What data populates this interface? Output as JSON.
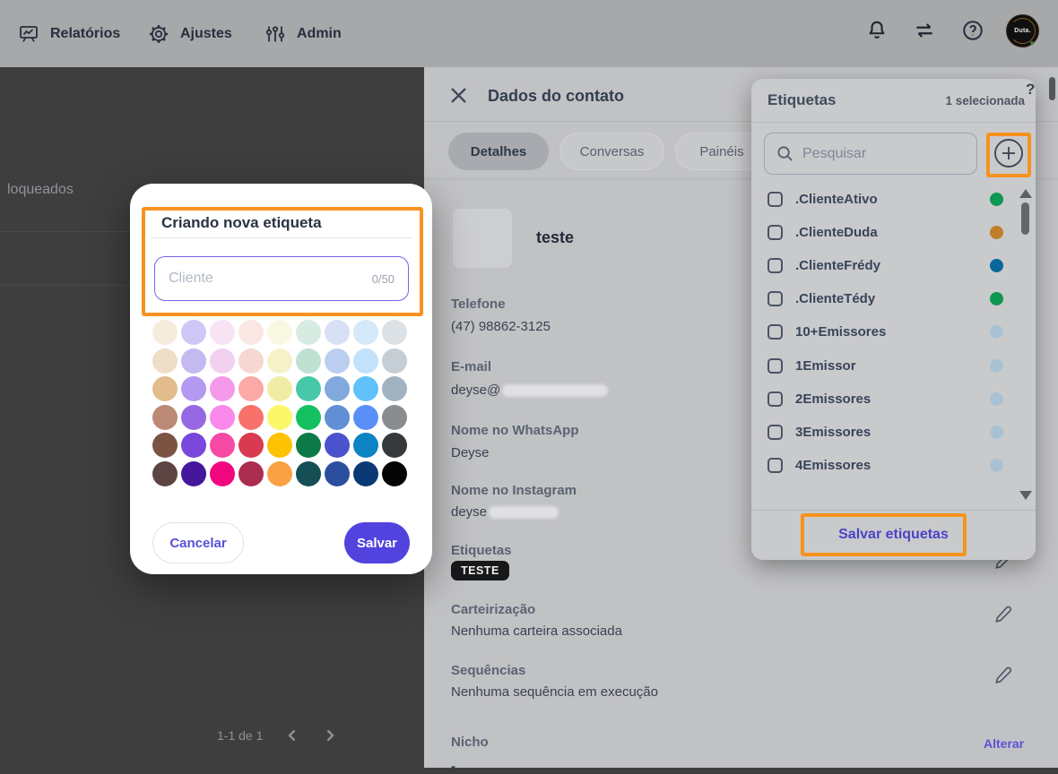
{
  "navbar": {
    "items": [
      {
        "label": "Relatórios",
        "icon": "presentation-chart-icon"
      },
      {
        "label": "Ajustes",
        "icon": "gear-icon"
      },
      {
        "label": "Admin",
        "icon": "sliders-icon"
      }
    ],
    "right_icons": [
      "bell-icon",
      "swap-arrows-icon",
      "help-icon"
    ],
    "avatar_text": "Duta."
  },
  "left_panel": {
    "truncated_text": "loqueados",
    "pagination_range": "1-1 de 1"
  },
  "contact_panel": {
    "title": "Dados do contato",
    "tabs": [
      {
        "label": "Detalhes",
        "active": true
      },
      {
        "label": "Conversas",
        "active": false
      },
      {
        "label": "Painéis",
        "active": false
      }
    ],
    "name": "teste",
    "phone_label": "Telefone",
    "phone_value": "(47) 98862-3125",
    "email_label": "E-mail",
    "email_value": "deyse@",
    "whatsapp_label": "Nome no WhatsApp",
    "whatsapp_value": "Deyse",
    "instagram_label": "Nome no Instagram",
    "instagram_value": "deyse",
    "etiquetas_label": "Etiquetas",
    "etiqueta_badge": "TESTE",
    "carteirizacao_label": "Carteirização",
    "carteirizacao_value": "Nenhuma carteira associada",
    "sequencias_label": "Sequências",
    "sequencias_value": "Nenhuma sequência em execução",
    "nicho_label": "Nicho",
    "nicho_action": "Alterar",
    "nicho_value": "-"
  },
  "etiquetas_panel": {
    "title": "Etiquetas",
    "selected_count": "1 selecionada",
    "search_placeholder": "Pesquisar",
    "save_label": "Salvar etiquetas",
    "items": [
      {
        "label": ".ClienteAtivo",
        "color": "#0d9752"
      },
      {
        "label": ".ClienteDuda",
        "color": "#c07f28"
      },
      {
        "label": ".ClienteFrédy",
        "color": "#09679c"
      },
      {
        "label": ".ClienteTédy",
        "color": "#0d9752"
      },
      {
        "label": "10+Emissores",
        "color": "#a9c2d3"
      },
      {
        "label": "1Emissor",
        "color": "#a9c2d3"
      },
      {
        "label": "2Emissores",
        "color": "#a9c2d3"
      },
      {
        "label": "3Emissores",
        "color": "#a9c2d3"
      },
      {
        "label": "4Emissores",
        "color": "#a9c2d3"
      }
    ]
  },
  "modal": {
    "title": "Criando nova etiqueta",
    "input_placeholder": "Cliente",
    "char_counter": "0/50",
    "cancel_label": "Cancelar",
    "save_label": "Salvar",
    "palette": [
      [
        "#f5ecdc",
        "#cfc8f6",
        "#f8e3f5",
        "#fae6e2",
        "#f9f8e3",
        "#d7ebe2",
        "#d7e0f5",
        "#d5e9fa",
        "#dce1e6"
      ],
      [
        "#eedec7",
        "#c5b9f2",
        "#f1d1ee",
        "#f7d7d1",
        "#f5f2ca",
        "#bfe1d2",
        "#bbcef0",
        "#c2e1fa",
        "#c5cdd5"
      ],
      [
        "#e2bc8d",
        "#b399ef",
        "#f499e9",
        "#fba9a4",
        "#f0eca5",
        "#47c8a8",
        "#81a9dd",
        "#61c1fb",
        "#a1b2c1"
      ],
      [
        "#bb8974",
        "#9667e3",
        "#fa89eb",
        "#f9716b",
        "#faf869",
        "#15c061",
        "#618ed5",
        "#5a8ff8",
        "#8a8d90"
      ],
      [
        "#7a5343",
        "#7947dc",
        "#f649a4",
        "#d93951",
        "#fdc203",
        "#0b7948",
        "#4b52cd",
        "#0c83c3",
        "#35393c"
      ],
      [
        "#5b4441",
        "#44179d",
        "#f1067e",
        "#ac2c50",
        "#faa143",
        "#164e55",
        "#2b4e9d",
        "#0b3975",
        "#050505"
      ]
    ]
  },
  "annotation_color": "#f6921e",
  "misc": {
    "partial_glyph": "?"
  }
}
